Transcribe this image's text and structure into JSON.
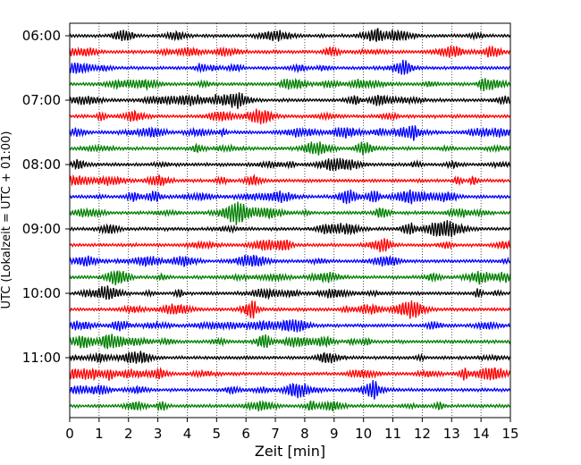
{
  "chart_data": {
    "type": "line",
    "subtype": "helicorder",
    "xlabel": "Zeit  [min]",
    "ylabel": "UTC (Lokalzeit = UTC + 01:00)",
    "xlim": [
      0,
      15
    ],
    "x_ticks": [
      "0",
      "1",
      "2",
      "3",
      "4",
      "5",
      "6",
      "7",
      "8",
      "9",
      "10",
      "11",
      "12",
      "13",
      "14",
      "15"
    ],
    "y_tick_labels": [
      "06:00",
      "07:00",
      "08:00",
      "09:00",
      "10:00",
      "11:00"
    ],
    "grid": "vertical dotted lines at each minute",
    "trace_colors": [
      "#000000",
      "#ff0000",
      "#0000ff",
      "#008000"
    ],
    "trace_count": 24,
    "first_trace": "06:00",
    "trace_interval_min": 15
  }
}
